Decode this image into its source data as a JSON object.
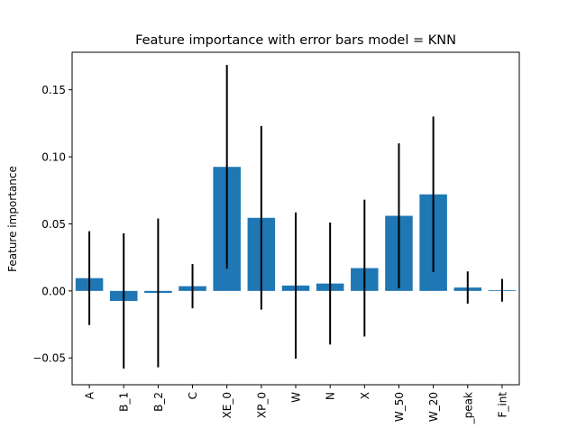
{
  "chart_data": {
    "type": "bar",
    "title": "Feature importance with error bars model = KNN",
    "xlabel": "",
    "ylabel": "Feature importance",
    "categories": [
      "A",
      "B_1",
      "B_2",
      "C",
      "XE_0",
      "XP_0",
      "W",
      "N",
      "X",
      "W_50",
      "W_20",
      "_peak",
      "F_int"
    ],
    "values": [
      0.0095,
      -0.0075,
      -0.0015,
      0.0035,
      0.0925,
      0.0545,
      0.004,
      0.0055,
      0.017,
      0.056,
      0.072,
      0.0025,
      0.0005
    ],
    "errors": [
      0.035,
      0.0505,
      0.0555,
      0.0165,
      0.076,
      0.0685,
      0.0545,
      0.0455,
      0.051,
      0.054,
      0.058,
      0.012,
      0.0085
    ],
    "ylim": [
      -0.07,
      0.178
    ],
    "yticks": [
      -0.05,
      0.0,
      0.05,
      0.1,
      0.15
    ],
    "ytick_labels": [
      "−0.05",
      "0.00",
      "0.05",
      "0.10",
      "0.15"
    ],
    "grid": false,
    "bar_color": "#1f77b4",
    "error_color": "#000000"
  }
}
